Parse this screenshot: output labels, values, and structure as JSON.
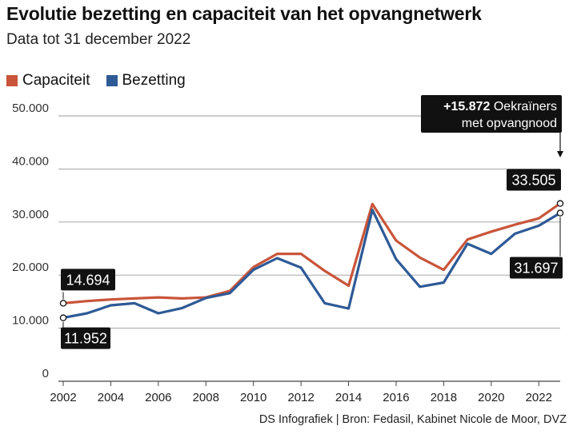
{
  "title": "Evolutie bezetting en capaciteit van het opvangnetwerk",
  "subtitle": "Data tot 31 december 2022",
  "source": "DS Infografiek | Bron: Fedasil, Kabinet Nicole de Moor, DVZ",
  "colors": {
    "capaciteit": "#c9553a",
    "bezetting": "#2e5a96",
    "grid": "#9a9a9a",
    "box": "#111111"
  },
  "chart_data": {
    "type": "line",
    "title": "Evolutie bezetting en capaciteit van het opvangnetwerk",
    "subtitle": "Data tot 31 december 2022",
    "x": [
      2002,
      2003,
      2004,
      2005,
      2006,
      2007,
      2008,
      2009,
      2010,
      2011,
      2012,
      2013,
      2014,
      2015,
      2016,
      2017,
      2018,
      2019,
      2020,
      2021,
      2022,
      2022.9
    ],
    "series": [
      {
        "name": "Capaciteit",
        "color": "#c9553a",
        "values": [
          14694,
          15100,
          15400,
          15600,
          15800,
          15600,
          15800,
          17000,
          21500,
          24000,
          24000,
          20800,
          18000,
          33400,
          26500,
          23300,
          21000,
          26700,
          28200,
          29500,
          30700,
          33505
        ]
      },
      {
        "name": "Bezetting",
        "color": "#2e5a96",
        "values": [
          11952,
          12800,
          14300,
          14700,
          12800,
          13800,
          15700,
          16600,
          21000,
          23200,
          21400,
          14700,
          13700,
          32300,
          23000,
          17800,
          18600,
          25900,
          24000,
          27800,
          29300,
          31697
        ]
      }
    ],
    "xticks": [
      "2002",
      "2004",
      "2006",
      "2008",
      "2010",
      "2012",
      "2014",
      "2016",
      "2018",
      "2020",
      "2022"
    ],
    "yticks": [
      "0",
      "10.000",
      "20.000",
      "30.000",
      "40.000",
      "50.000"
    ],
    "ylim": [
      0,
      50000
    ],
    "xlim": [
      2002,
      2022.9
    ],
    "grid": true,
    "legend": "top-left",
    "labels": {
      "cap_start": "14.694",
      "bez_start": "11.952",
      "cap_end": "33.505",
      "bez_end": "31.697"
    },
    "annotation": {
      "bold": "+15.872",
      "rest": " Oekraïners",
      "line2": "met opvangnood"
    }
  }
}
